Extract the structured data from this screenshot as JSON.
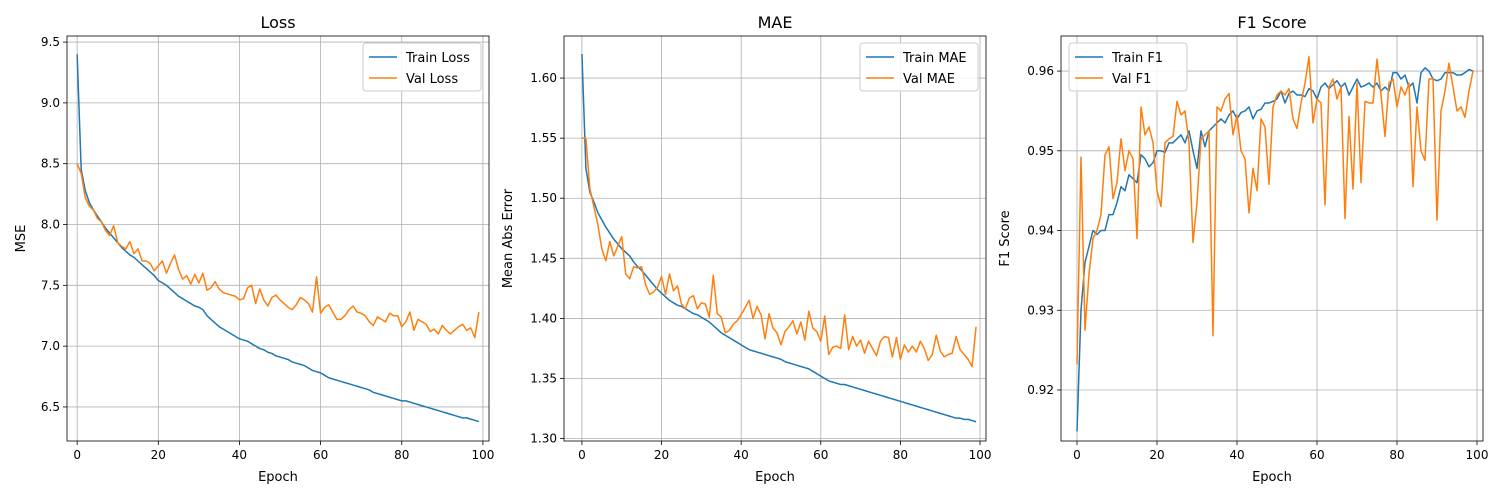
{
  "colors": {
    "train": "#1f77b4",
    "val": "#ff7f0e",
    "grid": "#b0b0b0"
  },
  "chart_data": [
    {
      "type": "line",
      "title": "Loss",
      "xlabel": "Epoch",
      "ylabel": "MSE",
      "xlim": [
        -2.5,
        101.5
      ],
      "ylim": [
        6.22,
        9.55
      ],
      "xticks": [
        0,
        20,
        40,
        60,
        80,
        100
      ],
      "yticks": [
        6.5,
        7.0,
        7.5,
        8.0,
        8.5,
        9.0,
        9.5
      ],
      "ytick_decimals": 1,
      "grid": true,
      "legend_position": "top-right",
      "series": [
        {
          "name": "Train Loss",
          "color": "#1f77b4",
          "x_start": 0,
          "x_step": 1,
          "values": [
            9.4,
            8.45,
            8.28,
            8.18,
            8.12,
            8.07,
            8.02,
            7.97,
            7.93,
            7.89,
            7.85,
            7.81,
            7.78,
            7.75,
            7.73,
            7.7,
            7.67,
            7.64,
            7.61,
            7.58,
            7.54,
            7.52,
            7.5,
            7.47,
            7.44,
            7.41,
            7.39,
            7.37,
            7.35,
            7.33,
            7.32,
            7.3,
            7.25,
            7.22,
            7.19,
            7.16,
            7.14,
            7.12,
            7.1,
            7.08,
            7.06,
            7.05,
            7.04,
            7.02,
            7.0,
            6.98,
            6.97,
            6.95,
            6.94,
            6.92,
            6.91,
            6.9,
            6.89,
            6.87,
            6.86,
            6.85,
            6.84,
            6.82,
            6.8,
            6.79,
            6.78,
            6.76,
            6.74,
            6.73,
            6.72,
            6.71,
            6.7,
            6.69,
            6.68,
            6.67,
            6.66,
            6.65,
            6.64,
            6.62,
            6.61,
            6.6,
            6.59,
            6.58,
            6.57,
            6.56,
            6.55,
            6.55,
            6.54,
            6.53,
            6.52,
            6.51,
            6.5,
            6.49,
            6.48,
            6.47,
            6.46,
            6.45,
            6.44,
            6.43,
            6.42,
            6.41,
            6.41,
            6.4,
            6.39,
            6.38
          ]
        },
        {
          "name": "Val Loss",
          "color": "#ff7f0e",
          "x_start": 0,
          "x_step": 1,
          "values": [
            8.5,
            8.42,
            8.22,
            8.15,
            8.12,
            8.05,
            8.02,
            7.95,
            7.91,
            7.99,
            7.85,
            7.82,
            7.8,
            7.86,
            7.76,
            7.8,
            7.7,
            7.7,
            7.68,
            7.62,
            7.66,
            7.7,
            7.6,
            7.68,
            7.75,
            7.63,
            7.55,
            7.58,
            7.51,
            7.59,
            7.52,
            7.6,
            7.46,
            7.48,
            7.53,
            7.47,
            7.44,
            7.43,
            7.42,
            7.41,
            7.38,
            7.39,
            7.48,
            7.5,
            7.35,
            7.47,
            7.38,
            7.33,
            7.4,
            7.42,
            7.38,
            7.35,
            7.32,
            7.3,
            7.34,
            7.4,
            7.38,
            7.35,
            7.28,
            7.57,
            7.27,
            7.32,
            7.34,
            7.28,
            7.22,
            7.22,
            7.25,
            7.3,
            7.33,
            7.28,
            7.27,
            7.25,
            7.2,
            7.17,
            7.24,
            7.22,
            7.2,
            7.27,
            7.25,
            7.25,
            7.16,
            7.2,
            7.28,
            7.13,
            7.22,
            7.2,
            7.18,
            7.12,
            7.14,
            7.1,
            7.17,
            7.13,
            7.1,
            7.13,
            7.16,
            7.18,
            7.13,
            7.15,
            7.07,
            7.28
          ]
        }
      ]
    },
    {
      "type": "line",
      "title": "MAE",
      "xlabel": "Epoch",
      "ylabel": "Mean Abs Error",
      "xlim": [
        -4.5,
        101.5
      ],
      "ylim": [
        1.298,
        1.635
      ],
      "xticks": [
        0,
        20,
        40,
        60,
        80,
        100
      ],
      "yticks": [
        1.3,
        1.35,
        1.4,
        1.45,
        1.5,
        1.55,
        1.6
      ],
      "ytick_decimals": 2,
      "grid": true,
      "legend_position": "top-right",
      "series": [
        {
          "name": "Train MAE",
          "color": "#1f77b4",
          "x_start": 0,
          "x_step": 1,
          "values": [
            1.62,
            1.525,
            1.505,
            1.497,
            1.488,
            1.482,
            1.476,
            1.471,
            1.466,
            1.462,
            1.458,
            1.455,
            1.452,
            1.447,
            1.443,
            1.44,
            1.436,
            1.432,
            1.428,
            1.424,
            1.421,
            1.418,
            1.415,
            1.413,
            1.411,
            1.41,
            1.408,
            1.406,
            1.404,
            1.403,
            1.401,
            1.399,
            1.397,
            1.394,
            1.391,
            1.388,
            1.386,
            1.384,
            1.382,
            1.38,
            1.378,
            1.376,
            1.374,
            1.373,
            1.372,
            1.371,
            1.37,
            1.369,
            1.368,
            1.367,
            1.366,
            1.364,
            1.363,
            1.362,
            1.361,
            1.36,
            1.359,
            1.358,
            1.356,
            1.354,
            1.352,
            1.35,
            1.348,
            1.347,
            1.346,
            1.345,
            1.345,
            1.344,
            1.343,
            1.342,
            1.341,
            1.34,
            1.339,
            1.338,
            1.337,
            1.336,
            1.335,
            1.334,
            1.333,
            1.332,
            1.331,
            1.33,
            1.329,
            1.328,
            1.327,
            1.326,
            1.325,
            1.324,
            1.323,
            1.322,
            1.321,
            1.32,
            1.319,
            1.318,
            1.317,
            1.317,
            1.316,
            1.316,
            1.315,
            1.314
          ]
        },
        {
          "name": "Val MAE",
          "color": "#ff7f0e",
          "x_start": 0,
          "x_step": 1,
          "values": [
            1.55,
            1.55,
            1.508,
            1.493,
            1.478,
            1.458,
            1.448,
            1.464,
            1.452,
            1.46,
            1.468,
            1.437,
            1.433,
            1.443,
            1.442,
            1.443,
            1.428,
            1.42,
            1.422,
            1.426,
            1.435,
            1.42,
            1.437,
            1.423,
            1.427,
            1.412,
            1.408,
            1.417,
            1.419,
            1.408,
            1.413,
            1.412,
            1.401,
            1.436,
            1.404,
            1.401,
            1.388,
            1.39,
            1.395,
            1.398,
            1.403,
            1.409,
            1.415,
            1.4,
            1.41,
            1.403,
            1.383,
            1.404,
            1.392,
            1.388,
            1.378,
            1.389,
            1.393,
            1.398,
            1.387,
            1.397,
            1.382,
            1.406,
            1.392,
            1.389,
            1.381,
            1.402,
            1.37,
            1.376,
            1.377,
            1.375,
            1.403,
            1.374,
            1.385,
            1.377,
            1.382,
            1.371,
            1.381,
            1.375,
            1.369,
            1.381,
            1.385,
            1.384,
            1.368,
            1.384,
            1.366,
            1.378,
            1.372,
            1.377,
            1.372,
            1.381,
            1.375,
            1.365,
            1.37,
            1.386,
            1.373,
            1.368,
            1.37,
            1.371,
            1.385,
            1.374,
            1.37,
            1.366,
            1.36,
            1.393
          ]
        }
      ]
    },
    {
      "type": "line",
      "title": "F1 Score",
      "xlabel": "Epoch",
      "ylabel": "F1 Score",
      "xlim": [
        -4.0,
        101.5
      ],
      "ylim": [
        0.9136,
        0.9644
      ],
      "xticks": [
        0,
        20,
        40,
        60,
        80,
        100
      ],
      "yticks": [
        0.92,
        0.93,
        0.94,
        0.95,
        0.96
      ],
      "ytick_decimals": 2,
      "grid": true,
      "legend_position": "top-left",
      "series": [
        {
          "name": "Train F1",
          "color": "#1f77b4",
          "x_start": 0,
          "x_step": 1,
          "values": [
            0.9148,
            0.93,
            0.936,
            0.938,
            0.94,
            0.9395,
            0.94,
            0.94,
            0.942,
            0.942,
            0.9435,
            0.9455,
            0.945,
            0.947,
            0.9465,
            0.946,
            0.9495,
            0.949,
            0.948,
            0.9485,
            0.95,
            0.95,
            0.9498,
            0.951,
            0.951,
            0.9515,
            0.952,
            0.951,
            0.9525,
            0.95,
            0.9478,
            0.9525,
            0.9505,
            0.9525,
            0.953,
            0.9535,
            0.954,
            0.9535,
            0.9545,
            0.955,
            0.954,
            0.9548,
            0.955,
            0.9555,
            0.954,
            0.955,
            0.9552,
            0.956,
            0.956,
            0.9562,
            0.9565,
            0.9575,
            0.956,
            0.9572,
            0.9575,
            0.957,
            0.957,
            0.9568,
            0.9578,
            0.9575,
            0.9565,
            0.958,
            0.9585,
            0.9578,
            0.9583,
            0.9588,
            0.958,
            0.9585,
            0.957,
            0.958,
            0.959,
            0.958,
            0.9582,
            0.9585,
            0.958,
            0.9585,
            0.9575,
            0.958,
            0.9575,
            0.9598,
            0.9598,
            0.959,
            0.9595,
            0.958,
            0.9585,
            0.956,
            0.9598,
            0.9604,
            0.96,
            0.959,
            0.9588,
            0.959,
            0.9598,
            0.9598,
            0.9598,
            0.9595,
            0.9595,
            0.9598,
            0.9602,
            0.96
          ]
        },
        {
          "name": "Val F1",
          "color": "#ff7f0e",
          "x_start": 0,
          "x_step": 1,
          "values": [
            0.9232,
            0.9492,
            0.9275,
            0.9345,
            0.939,
            0.94,
            0.942,
            0.9495,
            0.9505,
            0.944,
            0.946,
            0.9515,
            0.9475,
            0.95,
            0.949,
            0.939,
            0.9555,
            0.952,
            0.953,
            0.951,
            0.945,
            0.943,
            0.951,
            0.9515,
            0.9518,
            0.9562,
            0.9545,
            0.955,
            0.951,
            0.9385,
            0.9435,
            0.9515,
            0.952,
            0.9525,
            0.9268,
            0.9555,
            0.955,
            0.9565,
            0.9572,
            0.952,
            0.9545,
            0.95,
            0.949,
            0.9422,
            0.9478,
            0.945,
            0.954,
            0.953,
            0.9458,
            0.9555,
            0.957,
            0.9575,
            0.957,
            0.9578,
            0.954,
            0.9528,
            0.956,
            0.9585,
            0.9618,
            0.9535,
            0.9565,
            0.956,
            0.9432,
            0.958,
            0.959,
            0.9565,
            0.958,
            0.9415,
            0.9543,
            0.9452,
            0.9585,
            0.946,
            0.9562,
            0.956,
            0.956,
            0.9615,
            0.957,
            0.9518,
            0.9585,
            0.959,
            0.9555,
            0.958,
            0.957,
            0.9585,
            0.9455,
            0.9555,
            0.95,
            0.9488,
            0.959,
            0.959,
            0.9413,
            0.955,
            0.9575,
            0.961,
            0.958,
            0.955,
            0.9555,
            0.9542,
            0.9575,
            0.96
          ]
        }
      ]
    }
  ]
}
